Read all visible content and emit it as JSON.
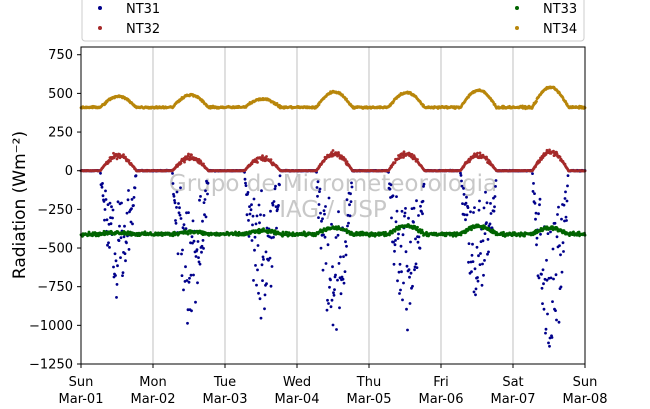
{
  "chart_data": {
    "type": "scatter",
    "ylabel": "Radiation (Wm⁻²)",
    "ylim": [
      -1250,
      800
    ],
    "yticks": [
      750,
      500,
      250,
      0,
      -250,
      -500,
      -750,
      -1000,
      -1250
    ],
    "ytick_labels": [
      "750",
      "500",
      "250",
      "0",
      "−250",
      "−500",
      "−750",
      "−1000",
      "−1250"
    ],
    "x_day_range": [
      0,
      7
    ],
    "xticks": [
      {
        "day": 0,
        "dow": "Sun",
        "date": "Mar-01"
      },
      {
        "day": 1,
        "dow": "Mon",
        "date": "Mar-02"
      },
      {
        "day": 2,
        "dow": "Tue",
        "date": "Mar-03"
      },
      {
        "day": 3,
        "dow": "Wed",
        "date": "Mar-04"
      },
      {
        "day": 4,
        "dow": "Thu",
        "date": "Mar-05"
      },
      {
        "day": 5,
        "dow": "Fri",
        "date": "Mar-06"
      },
      {
        "day": 6,
        "dow": "Sat",
        "date": "Mar-07"
      },
      {
        "day": 7,
        "dow": "Sun",
        "date": "Mar-08"
      }
    ],
    "grid": "vertical",
    "legend_position": "top",
    "watermark": [
      "Grupo de Micrometeorologia",
      "IAG / USP"
    ],
    "series": [
      {
        "name": "NT31",
        "color": "#00008b",
        "baseline": 0,
        "daily_peak": [
          -780,
          -940,
          -900,
          -1050,
          -960,
          -830,
          -1150
        ],
        "daily_scatter": 180
      },
      {
        "name": "NT32",
        "color": "#a52a2a",
        "baseline": 0,
        "daily_peak": [
          100,
          85,
          80,
          110,
          110,
          100,
          120
        ],
        "daily_scatter": 30
      },
      {
        "name": "NT33",
        "color": "#006400",
        "baseline": -410,
        "daily_peak": [
          -400,
          -395,
          -390,
          -370,
          -355,
          -360,
          -370
        ],
        "daily_scatter": 18
      },
      {
        "name": "NT34",
        "color": "#b8860b",
        "baseline": 410,
        "daily_peak": [
          480,
          490,
          465,
          510,
          505,
          520,
          540
        ],
        "daily_scatter": 10
      }
    ]
  }
}
